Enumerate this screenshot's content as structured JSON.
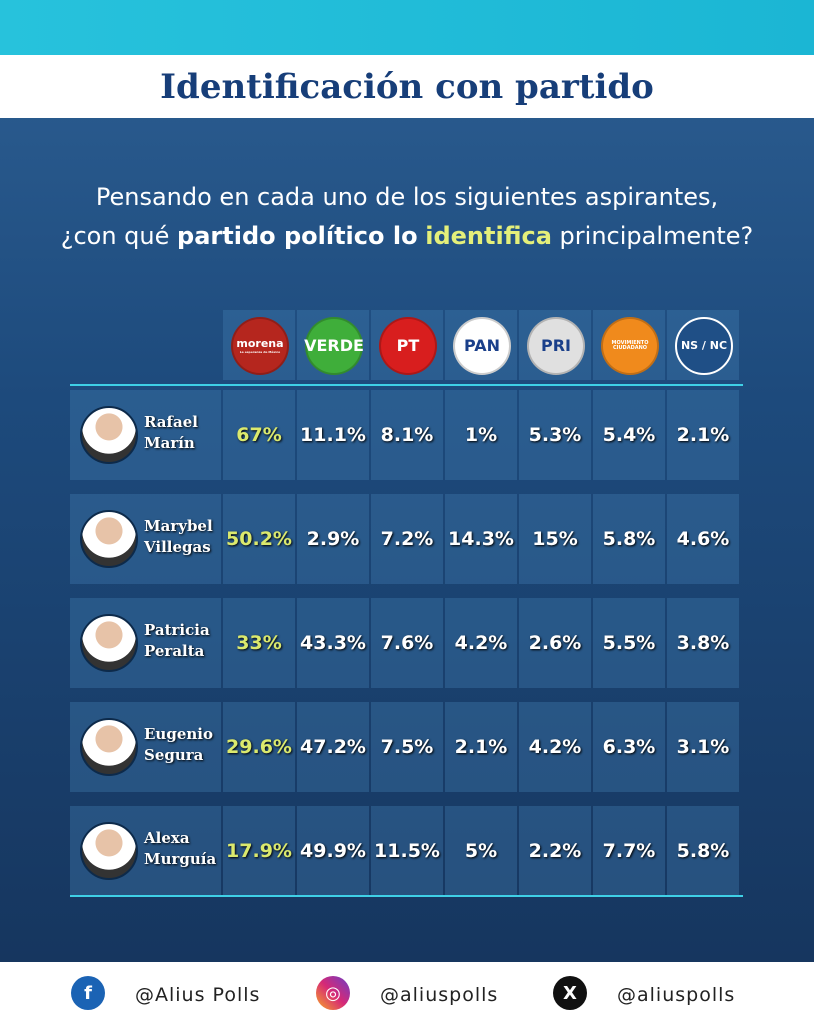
{
  "header": {
    "title": "Identificación con partido"
  },
  "question": {
    "line1": "Pensando en cada uno de los siguientes aspirantes,",
    "line2": [
      {
        "text": "¿con qué",
        "style": "plain"
      },
      {
        "text": "partido político lo",
        "style": "bold"
      },
      {
        "text": "identifica",
        "style": "highlight"
      },
      {
        "text": "principalmente?",
        "style": "plain"
      }
    ]
  },
  "parties": [
    {
      "label": "morena",
      "sub": "La esperanza de México",
      "color": "#b5261e"
    },
    {
      "label": "VERDE",
      "color": "#3fae3a"
    },
    {
      "label": "PT",
      "color": "#d81e1e"
    },
    {
      "label": "PAN",
      "color": "#ffffff"
    },
    {
      "label": "PRI",
      "color": "#e0e0e0"
    },
    {
      "label": "MOVIMIENTO CIUDADANO",
      "color": "#f08a1c"
    },
    {
      "label": "NS / NC",
      "color": "#1f4f86"
    }
  ],
  "table": {
    "rows": [
      {
        "name": [
          "Rafael",
          "Marín"
        ],
        "values": [
          "67%",
          "11.1%",
          "8.1%",
          "1%",
          "5.3%",
          "5.4%",
          "2.1%"
        ]
      },
      {
        "name": [
          "Marybel",
          "Villegas"
        ],
        "values": [
          "50.2%",
          "2.9%",
          "7.2%",
          "14.3%",
          "15%",
          "5.8%",
          "4.6%"
        ]
      },
      {
        "name": [
          "Patricia",
          "Peralta"
        ],
        "values": [
          "33%",
          "43.3%",
          "7.6%",
          "4.2%",
          "2.6%",
          "5.5%",
          "3.8%"
        ]
      },
      {
        "name": [
          "Eugenio",
          "Segura"
        ],
        "values": [
          "29.6%",
          "47.2%",
          "7.5%",
          "2.1%",
          "4.2%",
          "6.3%",
          "3.1%"
        ]
      },
      {
        "name": [
          "Alexa",
          "Murguía"
        ],
        "values": [
          "17.9%",
          "49.9%",
          "11.5%",
          "5%",
          "2.2%",
          "7.7%",
          "5.8%"
        ]
      }
    ]
  },
  "footer": {
    "facebook": "@Alius Polls",
    "instagram": "@aliuspolls",
    "x": "@aliuspolls"
  }
}
